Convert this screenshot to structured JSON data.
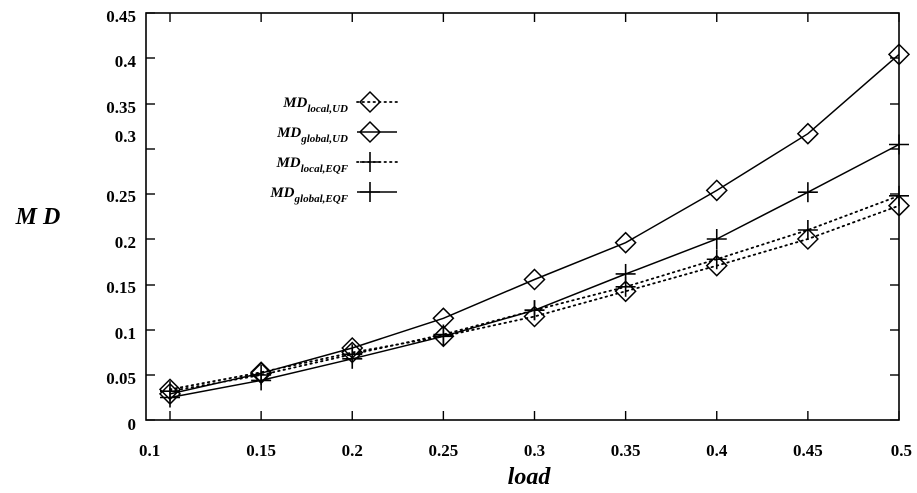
{
  "chart_data": {
    "type": "line",
    "xlabel": "load",
    "ylabel": "M D",
    "xlim": [
      0.1,
      0.5
    ],
    "ylim": [
      0,
      0.45
    ],
    "x_ticks": [
      "0.1",
      "0.15",
      "0.2",
      "0.25",
      "0.3",
      "0.35",
      "0.4",
      "0.45",
      "0.5"
    ],
    "y_ticks": [
      {
        "value": 0,
        "label": "0"
      },
      {
        "value": 0.05,
        "label": "0.05"
      },
      {
        "value": 0.1,
        "label": "0.1"
      },
      {
        "value": 0.15,
        "label": "0.15"
      },
      {
        "value": 0.2,
        "label": "0.2"
      },
      {
        "value": 0.25,
        "label": "0.25"
      },
      {
        "value": 0.3,
        "label": "0.3"
      },
      {
        "value": 0.35,
        "label": "0.35"
      },
      {
        "value": 0.4,
        "label": "0.4"
      },
      {
        "value": 0.45,
        "label": "0.45"
      }
    ],
    "grid": false,
    "legend_position": "top-left",
    "x": [
      0.1,
      0.15,
      0.2,
      0.25,
      0.3,
      0.35,
      0.4,
      0.45,
      0.5
    ],
    "series": [
      {
        "name_main": "MD",
        "name_sub": "local,UD",
        "marker": "diamond",
        "line": "dotted",
        "values": [
          0.034,
          0.053,
          0.075,
          0.093,
          0.115,
          0.143,
          0.171,
          0.2,
          0.237
        ]
      },
      {
        "name_main": "MD",
        "name_sub": "global,UD",
        "marker": "diamond",
        "line": "solid",
        "values": [
          0.029,
          0.052,
          0.08,
          0.113,
          0.156,
          0.196,
          0.254,
          0.317,
          0.404
        ]
      },
      {
        "name_main": "MD",
        "name_sub": "local,EQF",
        "marker": "plus",
        "line": "dotted",
        "values": [
          0.032,
          0.05,
          0.073,
          0.095,
          0.122,
          0.148,
          0.178,
          0.21,
          0.248
        ]
      },
      {
        "name_main": "MD",
        "name_sub": "global,EQF",
        "marker": "plus",
        "line": "solid",
        "values": [
          0.025,
          0.044,
          0.068,
          0.093,
          0.122,
          0.162,
          0.2,
          0.252,
          0.305
        ]
      }
    ]
  }
}
